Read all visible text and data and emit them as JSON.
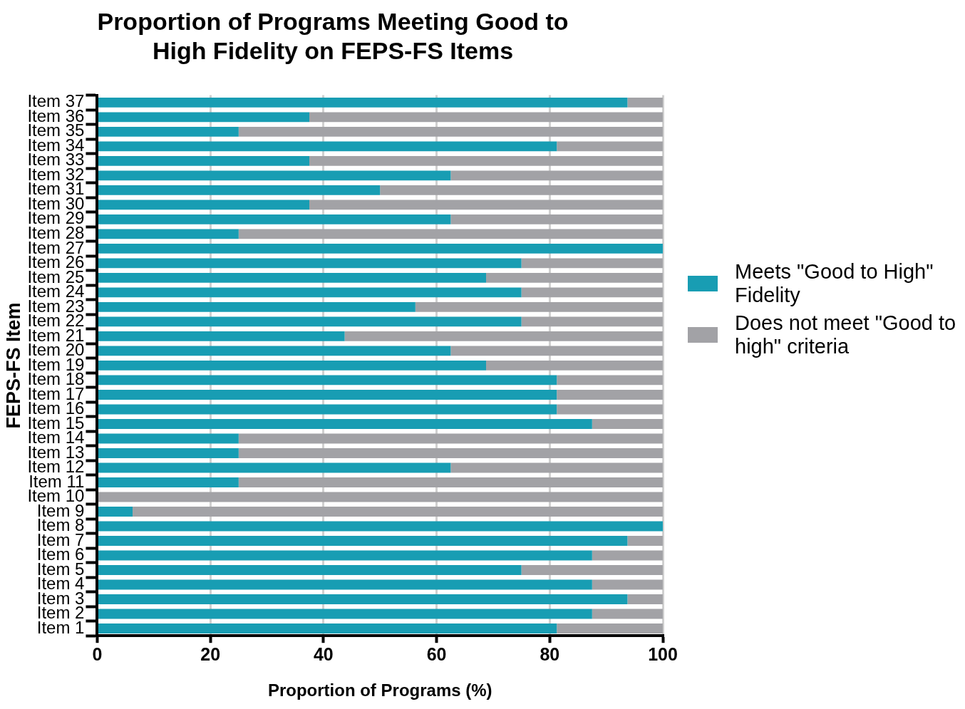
{
  "chart_data": {
    "type": "bar",
    "orientation": "horizontal",
    "stacked": true,
    "title": "Proportion of Programs Meeting Good to High Fidelity on FEPS-FS Items",
    "xlabel": "Proportion of Programs (%)",
    "ylabel": "FEPS-FS Item",
    "categories": [
      "Item 37",
      "Item 36",
      "Item 35",
      "Item 34",
      "Item 33",
      "Item 32",
      "Item 31",
      "Item 30",
      "Item 29",
      "Item 28",
      "Item 27",
      "Item 26",
      "Item 25",
      "Item 24",
      "Item 23",
      "Item 22",
      "Item 21",
      "Item 20",
      "Item 19",
      "Item 18",
      "Item 17",
      "Item 16",
      "Item 15",
      "Item 14",
      "Item 13",
      "Item 12",
      "Item 11",
      "Item 10",
      "Item 9",
      "Item 8",
      "Item 7",
      "Item 6",
      "Item 5",
      "Item 4",
      "Item 3",
      "Item 2",
      "Item 1"
    ],
    "series": [
      {
        "name": "Meets \"Good to High\" Fidelity",
        "color": "#189db3",
        "values": [
          93.75,
          37.5,
          25,
          81.25,
          37.5,
          62.5,
          50,
          37.5,
          62.5,
          25,
          100,
          75,
          68.75,
          75,
          56.25,
          75,
          43.75,
          62.5,
          68.75,
          81.25,
          81.25,
          81.25,
          87.5,
          25,
          25,
          62.5,
          25,
          0,
          6.25,
          100,
          93.75,
          87.5,
          75,
          87.5,
          93.75,
          87.5,
          81.25
        ]
      },
      {
        "name": "Does not meet \"Good to high\" criteria",
        "color": "#a2a2a6",
        "values": [
          6.25,
          62.5,
          75,
          18.75,
          62.5,
          37.5,
          50,
          62.5,
          37.5,
          75,
          0,
          25,
          31.25,
          25,
          43.75,
          25,
          56.25,
          37.5,
          31.25,
          18.75,
          18.75,
          18.75,
          12.5,
          75,
          75,
          37.5,
          75,
          100,
          93.75,
          0,
          6.25,
          12.5,
          25,
          12.5,
          6.25,
          12.5,
          18.75
        ]
      }
    ],
    "xlim": [
      0,
      100
    ],
    "xticks": [
      0,
      20,
      40,
      60,
      80,
      100
    ],
    "grid": "x",
    "legend": "right"
  }
}
